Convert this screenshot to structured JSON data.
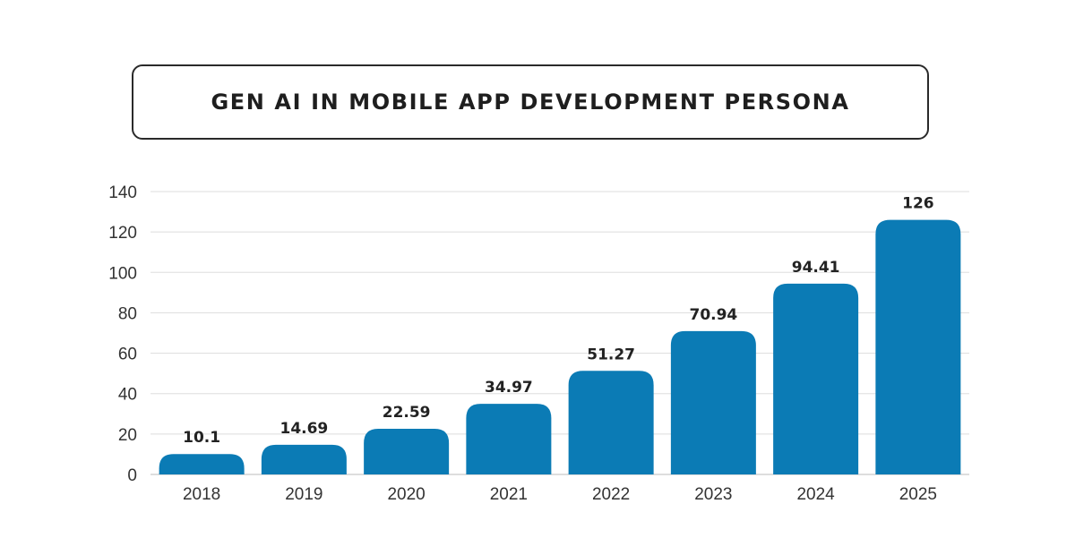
{
  "chart_data": {
    "type": "bar",
    "title": "GEN AI IN MOBILE APP DEVELOPMENT PERSONA",
    "categories": [
      "2018",
      "2019",
      "2020",
      "2021",
      "2022",
      "2023",
      "2024",
      "2025"
    ],
    "values": [
      10.1,
      14.69,
      22.59,
      34.97,
      51.27,
      70.94,
      94.41,
      126
    ],
    "data_labels": [
      "10.1",
      "14.69",
      "22.59",
      "34.97",
      "51.27",
      "70.94",
      "94.41",
      "126"
    ],
    "xlabel": "",
    "ylabel": "",
    "ylim": [
      0,
      140
    ],
    "yticks": [
      "0",
      "20",
      "40",
      "60",
      "80",
      "100",
      "120",
      "140"
    ],
    "grid": "horizontal",
    "legend": "none",
    "colors": {
      "bar": "#0b7bb5",
      "grid": "#dddddd",
      "title_border": "#2a2a2a"
    }
  }
}
